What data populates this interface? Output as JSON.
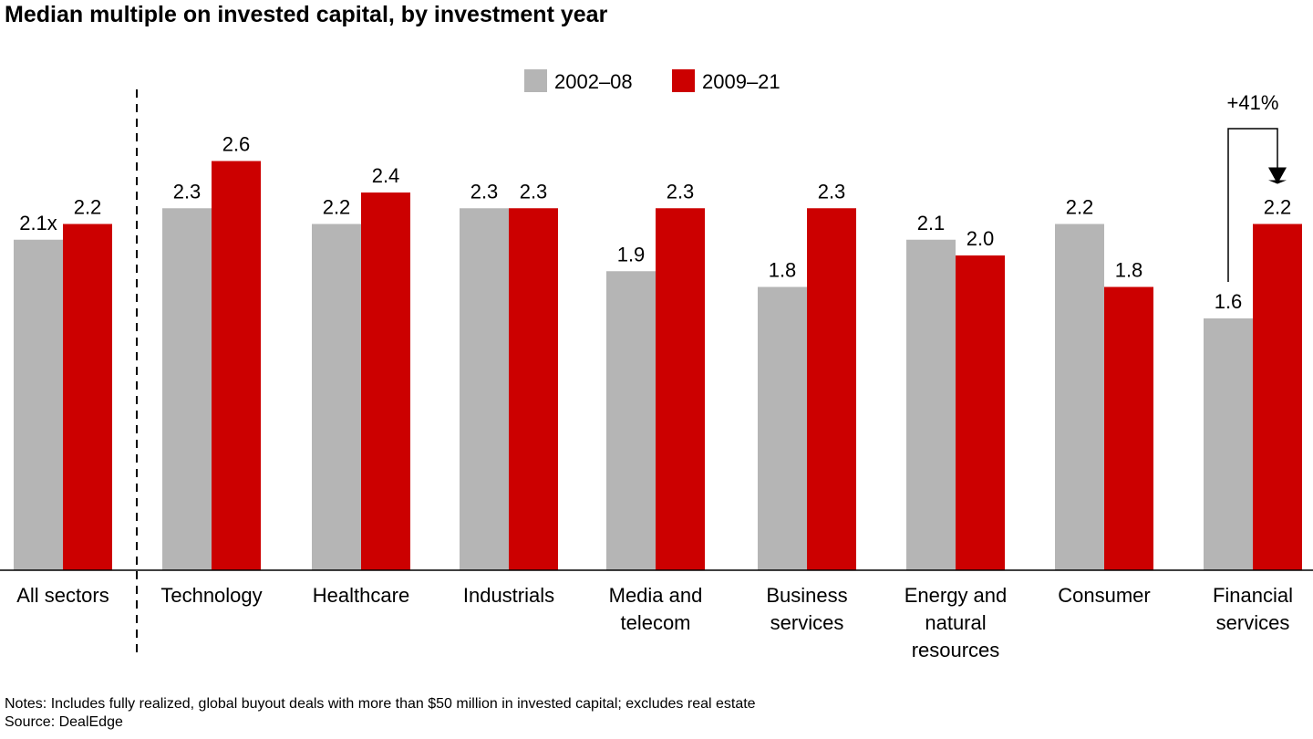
{
  "chart_data": {
    "type": "bar",
    "title": "Median multiple on invested capital, by investment year",
    "categories": [
      [
        "All sectors"
      ],
      [
        "Technology"
      ],
      [
        "Healthcare"
      ],
      [
        "Industrials"
      ],
      [
        "Media and",
        "telecom"
      ],
      [
        "Business",
        "services"
      ],
      [
        "Energy and",
        "natural",
        "resources"
      ],
      [
        "Consumer"
      ],
      [
        "Financial",
        "services"
      ]
    ],
    "series": [
      {
        "name": "2002–08",
        "color": "#b5b5b5",
        "values": [
          2.1,
          2.3,
          2.2,
          2.3,
          1.9,
          1.8,
          2.1,
          2.2,
          1.6
        ],
        "labels": [
          "2.1x",
          "2.3",
          "2.2",
          "2.3",
          "1.9",
          "1.8",
          "2.1",
          "2.2",
          "1.6"
        ]
      },
      {
        "name": "2009–21",
        "color": "#cc0000",
        "values": [
          2.2,
          2.6,
          2.4,
          2.3,
          2.3,
          2.3,
          2.0,
          1.8,
          2.2
        ],
        "labels": [
          "2.2",
          "2.6",
          "2.4",
          "2.3",
          "2.3",
          "2.3",
          "2.0",
          "1.8",
          "2.2"
        ]
      }
    ],
    "ylim": [
      0,
      2.8
    ],
    "legend_position": "top-center",
    "grid": false,
    "annotation": {
      "text": "+41%",
      "category_index": 8
    }
  },
  "notes": "Notes: Includes fully realized, global buyout deals with more than $50 million in invested capital; excludes real estate",
  "source": "Source: DealEdge"
}
